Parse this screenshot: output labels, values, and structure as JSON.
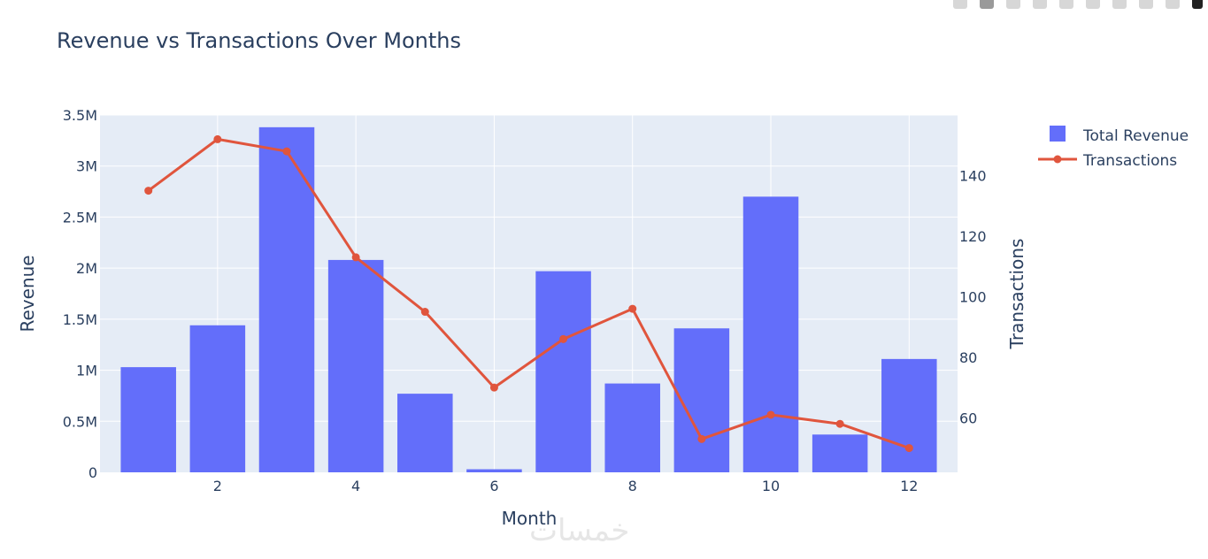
{
  "toolbar": {
    "icons": [
      "camera-icon",
      "zoom-icon",
      "pan-icon",
      "box-select-icon",
      "lasso-select-icon",
      "zoom-in-icon",
      "zoom-out-icon",
      "autoscale-icon",
      "reset-axes-icon",
      "plotly-logo-icon"
    ]
  },
  "watermark": {
    "text": "خمسات"
  },
  "colors": {
    "bar": "#636efa",
    "line": "#e0553d",
    "plot_bg": "#e5ecf6",
    "text": "#2a3f5f",
    "grid": "#ffffff"
  },
  "chart_data": {
    "type": "bar",
    "title": "Revenue vs Transactions Over Months",
    "xlabel": "Month",
    "ylabel": "Revenue",
    "y2label": "Transactions",
    "x": [
      1,
      2,
      3,
      4,
      5,
      6,
      7,
      8,
      9,
      10,
      11,
      12
    ],
    "xticks": [
      2,
      4,
      6,
      8,
      10,
      12
    ],
    "xlim": [
      0.3,
      12.7
    ],
    "ylim": [
      0,
      3500000
    ],
    "yticks": [
      0,
      500000,
      1000000,
      1500000,
      2000000,
      2500000,
      3000000,
      3500000
    ],
    "ytick_labels": [
      "0",
      "0.5M",
      "1M",
      "1.5M",
      "2M",
      "2.5M",
      "3M",
      "3.5M"
    ],
    "y2lim": [
      42,
      160
    ],
    "y2ticks": [
      60,
      80,
      100,
      120,
      140
    ],
    "y2tick_labels": [
      "60",
      "80",
      "100",
      "120",
      "140"
    ],
    "grid": true,
    "legend_position": "top-right",
    "series": [
      {
        "name": "Total Revenue",
        "type": "bar",
        "axis": "y",
        "values": [
          1030000,
          1440000,
          3380000,
          2080000,
          770000,
          30000,
          1970000,
          870000,
          1410000,
          2700000,
          370000,
          1110000
        ]
      },
      {
        "name": "Transactions",
        "type": "line",
        "axis": "y2",
        "values": [
          135,
          152,
          148,
          113,
          95,
          70,
          86,
          96,
          53,
          61,
          58,
          50
        ]
      }
    ]
  }
}
